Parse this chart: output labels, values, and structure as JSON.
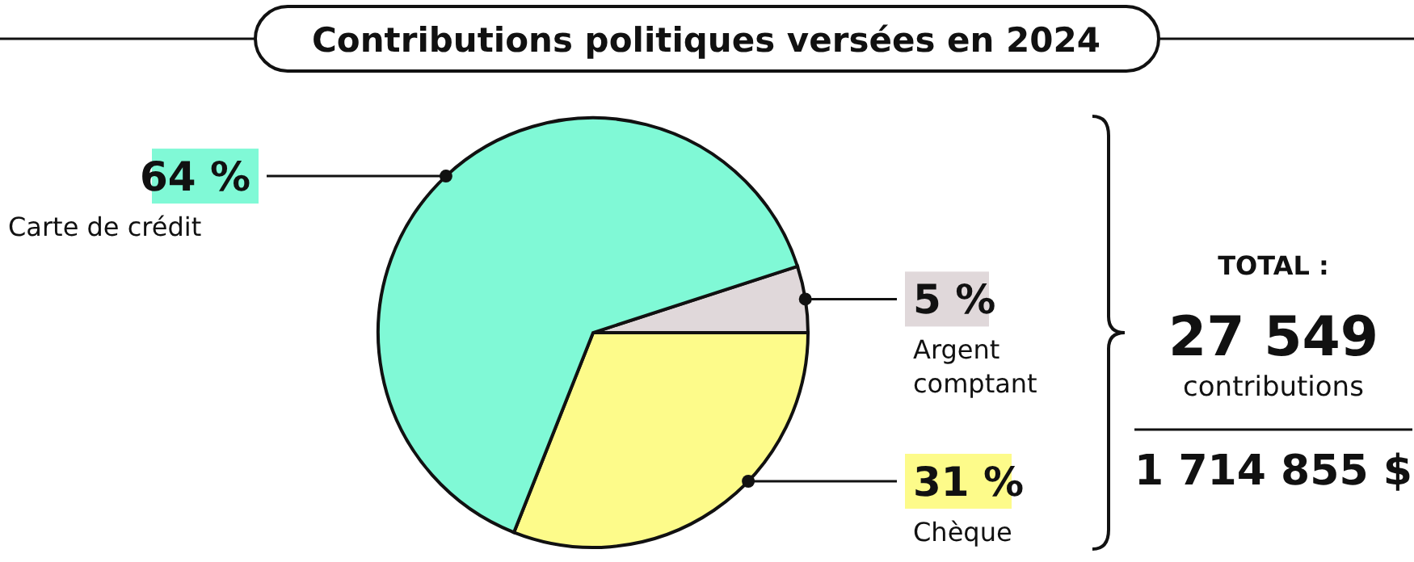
{
  "chart_data": {
    "type": "pie",
    "title": "Contributions politiques versées en 2024",
    "categories": [
      "Argent comptant",
      "Chèque",
      "Carte de crédit"
    ],
    "values": [
      5,
      31,
      64
    ],
    "colors": [
      "#e0d8da",
      "#fdfb8a",
      "#80f9d6"
    ],
    "value_labels": [
      "5 %",
      "31 %",
      "64 %"
    ],
    "legend": "bottom left",
    "annotations": [
      "TOTAL :",
      "27 549",
      "contributions",
      "1 714 855 $"
    ]
  }
}
